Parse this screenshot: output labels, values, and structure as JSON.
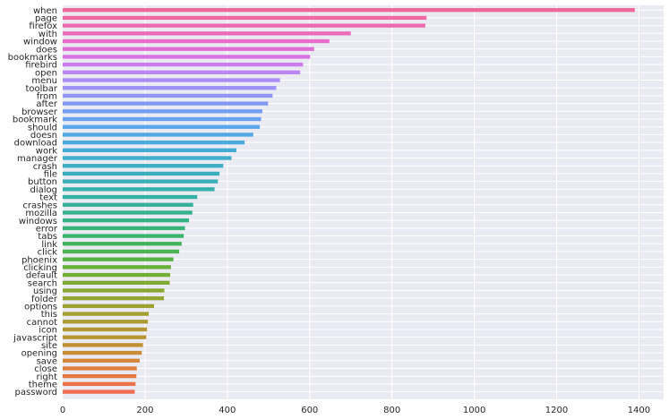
{
  "chart_data": {
    "type": "bar",
    "orientation": "horizontal",
    "title": "",
    "xlabel": "",
    "ylabel": "",
    "xlim": [
      0,
      1460
    ],
    "xticks": [
      0,
      200,
      400,
      600,
      800,
      1000,
      1200,
      1400
    ],
    "grid": true,
    "categories": [
      "when",
      "page",
      "firefox",
      "with",
      "window",
      "does",
      "bookmarks",
      "firebird",
      "open",
      "menu",
      "toolbar",
      "from",
      "after",
      "browser",
      "bookmark",
      "should",
      "doesn",
      "download",
      "work",
      "manager",
      "crash",
      "file",
      "button",
      "dialog",
      "text",
      "crashes",
      "mozilla",
      "windows",
      "error",
      "tabs",
      "link",
      "click",
      "phoenix",
      "clicking",
      "default",
      "search",
      "using",
      "folder",
      "options",
      "this",
      "cannot",
      "icon",
      "javascript",
      "site",
      "opening",
      "save",
      "close",
      "right",
      "theme",
      "password"
    ],
    "values": [
      1390,
      884,
      881,
      700,
      648,
      611,
      601,
      584,
      577,
      528,
      519,
      510,
      499,
      485,
      482,
      479,
      463,
      442,
      422,
      410,
      390,
      381,
      377,
      369,
      327,
      317,
      315,
      307,
      297,
      294,
      289,
      283,
      269,
      263,
      261,
      260,
      247,
      246,
      222,
      209,
      207,
      205,
      203,
      195,
      192,
      187,
      180,
      179,
      177,
      175
    ],
    "colors": [
      "#f0679a",
      "#ee69a4",
      "#ec6aaf",
      "#ea6cbb",
      "#e66dc8",
      "#e06fd5",
      "#d874e2",
      "#cc7ded",
      "#bb85f2",
      "#aa8cf3",
      "#9c91f4",
      "#8f96f4",
      "#8299f3",
      "#739ef2",
      "#66a2f0",
      "#5ba6ec",
      "#51a8e5",
      "#4aaadd",
      "#44acd4",
      "#40adcc",
      "#3daec4",
      "#3aafbc",
      "#38b0b4",
      "#36b0ac",
      "#35b1a3",
      "#35b199",
      "#35b28f",
      "#36b384",
      "#38b378",
      "#3bb46b",
      "#41b45d",
      "#4bb450",
      "#58b243",
      "#66b03a",
      "#73ad35",
      "#7faa33",
      "#89a832",
      "#93a532",
      "#9ca232",
      "#a49f32",
      "#ab9b32",
      "#b29832",
      "#b99433",
      "#c19034",
      "#c98c36",
      "#d48639",
      "#df7f3d",
      "#e67942",
      "#ec7349",
      "#f06d52"
    ]
  }
}
